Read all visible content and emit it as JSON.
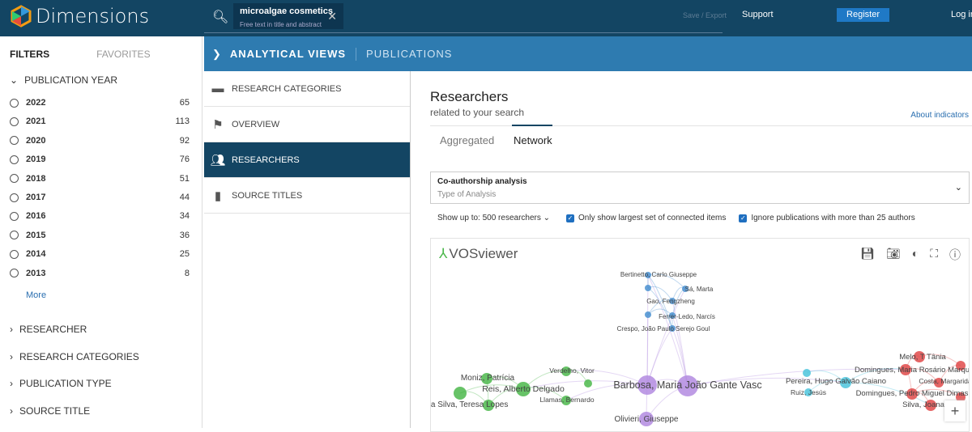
{
  "header": {
    "logo": "Dimensions",
    "search_query": "microalgae cosmetics",
    "search_hint": "Free text in title and abstract",
    "save_export": "Save / Export",
    "support": "Support",
    "register": "Register",
    "login": "Log in"
  },
  "sidebar": {
    "tab_filters": "FILTERS",
    "tab_favorites": "FAVORITES",
    "publication_year": "PUBLICATION YEAR",
    "years": [
      {
        "year": "2022",
        "count": "65"
      },
      {
        "year": "2021",
        "count": "113"
      },
      {
        "year": "2020",
        "count": "92"
      },
      {
        "year": "2019",
        "count": "76"
      },
      {
        "year": "2018",
        "count": "51"
      },
      {
        "year": "2017",
        "count": "44"
      },
      {
        "year": "2016",
        "count": "34"
      },
      {
        "year": "2015",
        "count": "36"
      },
      {
        "year": "2014",
        "count": "25"
      },
      {
        "year": "2013",
        "count": "8"
      }
    ],
    "more": "More",
    "sections": [
      "RESEARCHER",
      "RESEARCH CATEGORIES",
      "PUBLICATION TYPE",
      "SOURCE TITLE"
    ]
  },
  "topbar": {
    "analytical_views": "ANALYTICAL VIEWS",
    "publications": "PUBLICATIONS"
  },
  "nav": [
    {
      "label": "RESEARCH CATEGORIES",
      "icon": "folder-icon"
    },
    {
      "label": "OVERVIEW",
      "icon": "flag-icon"
    },
    {
      "label": "RESEARCHERS",
      "icon": "people-icon",
      "selected": true
    },
    {
      "label": "SOURCE TITLES",
      "icon": "book-icon"
    }
  ],
  "main": {
    "title": "Researchers",
    "subtitle": "related to your search",
    "about": "About indicators",
    "tab_aggregated": "Aggregated",
    "tab_network": "Network",
    "active_tab": "Network",
    "analysis_value": "Co-authorship analysis",
    "analysis_label": "Type of Analysis",
    "show_up_to_label": "Show up to:",
    "show_up_to_value": "500 researchers",
    "opt_largest": "Only show largest set of connected items",
    "opt_largest_checked": true,
    "opt_ignore": "Ignore publications with more than 25 authors",
    "opt_ignore_checked": true
  },
  "vosviewer": {
    "logo": "VOSviewer",
    "tools": [
      "save-icon",
      "camera-icon",
      "theme-icon",
      "fullscreen-icon",
      "info-icon"
    ],
    "zoom_in": "+",
    "cluster_colors": {
      "blue": "#4a90d0",
      "purple": "#b38be0",
      "green": "#4cb84c",
      "cyan": "#4cc4dc",
      "red": "#e04a4a"
    },
    "labels": [
      "Bertinetto, Carlo Giuseppe",
      "Sá, Marta",
      "Gao, Fengzheng",
      "Ferrer-Ledo, Narcís",
      "Crespo, João Paulo Serejo Goul",
      "Barbosa, Maria João Gante Vasc",
      "Olivieri, Giuseppe",
      "Moniz, Patrícia",
      "Reis, Alberto Delgado",
      "Da Silva, Teresa Lopes",
      "Verdelho, Vitor",
      "Llamas, Bernardo",
      "Pereira, Hugo Galvão Caiano",
      "Ruiz, Jesús",
      "Melo, T Tânia",
      "Domingues, Maria Rosário Marqu",
      "Costa, Margarida",
      "Domingues, Pedro Miguel Dimas",
      "Silva, Joana"
    ]
  }
}
